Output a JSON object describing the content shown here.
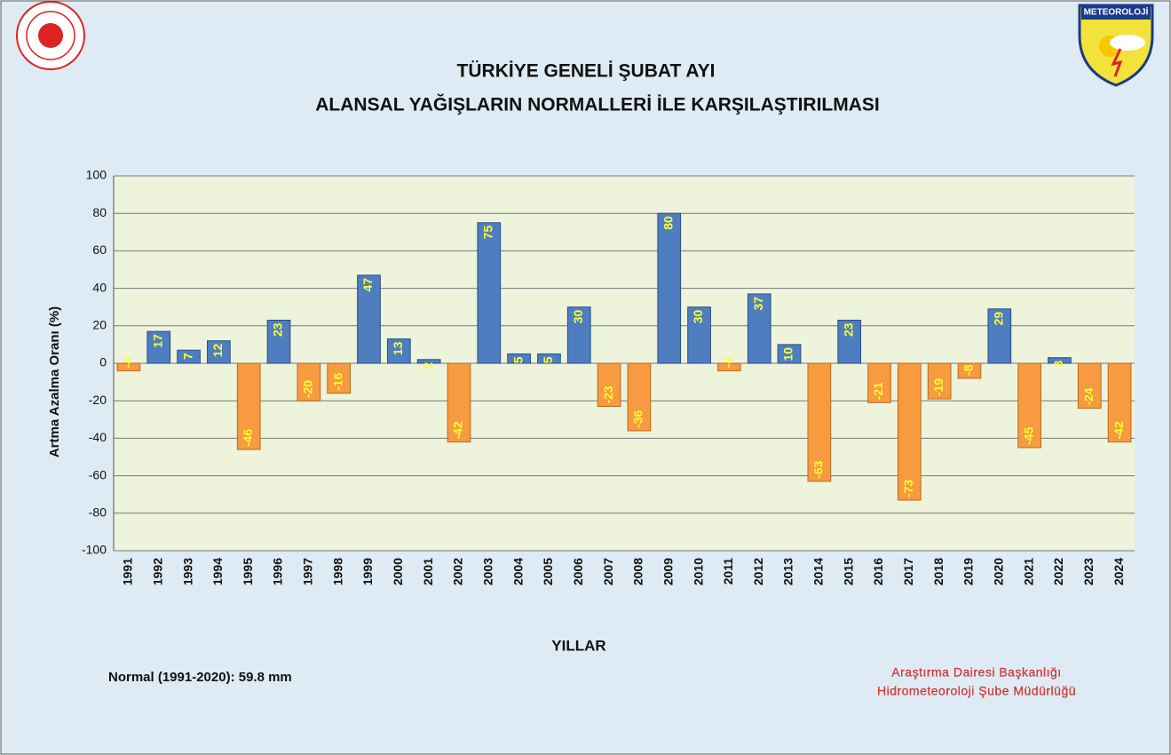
{
  "chart_data": {
    "type": "bar",
    "title": [
      "TÜRKİYE GENELİ  ŞUBAT AYI",
      "ALANSAL YAĞIŞLARIN NORMALLERİ İLE KARŞILAŞTIRILMASI"
    ],
    "x_label": "YILLAR",
    "y_label": "Artma Azalma Oranı (%)",
    "categories": [
      "1991",
      "1992",
      "1993",
      "1994",
      "1995",
      "1996",
      "1997",
      "1998",
      "1999",
      "2000",
      "2001",
      "2002",
      "2003",
      "2004",
      "2005",
      "2006",
      "2007",
      "2008",
      "2009",
      "2010",
      "2011",
      "2012",
      "2013",
      "2014",
      "2015",
      "2016",
      "2017",
      "2018",
      "2019",
      "2020",
      "2021",
      "2022",
      "2023",
      "2024"
    ],
    "values": [
      -4,
      17,
      7,
      12,
      -46,
      23,
      -20,
      -16,
      47,
      13,
      2,
      -42,
      75,
      5,
      5,
      30,
      -23,
      -36,
      80,
      30,
      -4,
      37,
      10,
      -63,
      23,
      -21,
      -73,
      -19,
      -8,
      29,
      -45,
      3,
      -24,
      -42
    ],
    "positive_color": "#4f7ec0",
    "negative_color": "#f79a40",
    "ylim": [
      -100,
      100
    ],
    "yticks": [
      -100,
      -80,
      -60,
      -40,
      -20,
      0,
      20,
      40,
      60,
      80,
      100
    ],
    "grid": true,
    "note": "Normal (1991-2020): 59.8 mm",
    "credits": [
      "Araştırma Dairesi Başkanlığı",
      "Hidrometeoroloji Şube Müdürlüğü"
    ],
    "logo_text": "METEOROLOJİ"
  }
}
